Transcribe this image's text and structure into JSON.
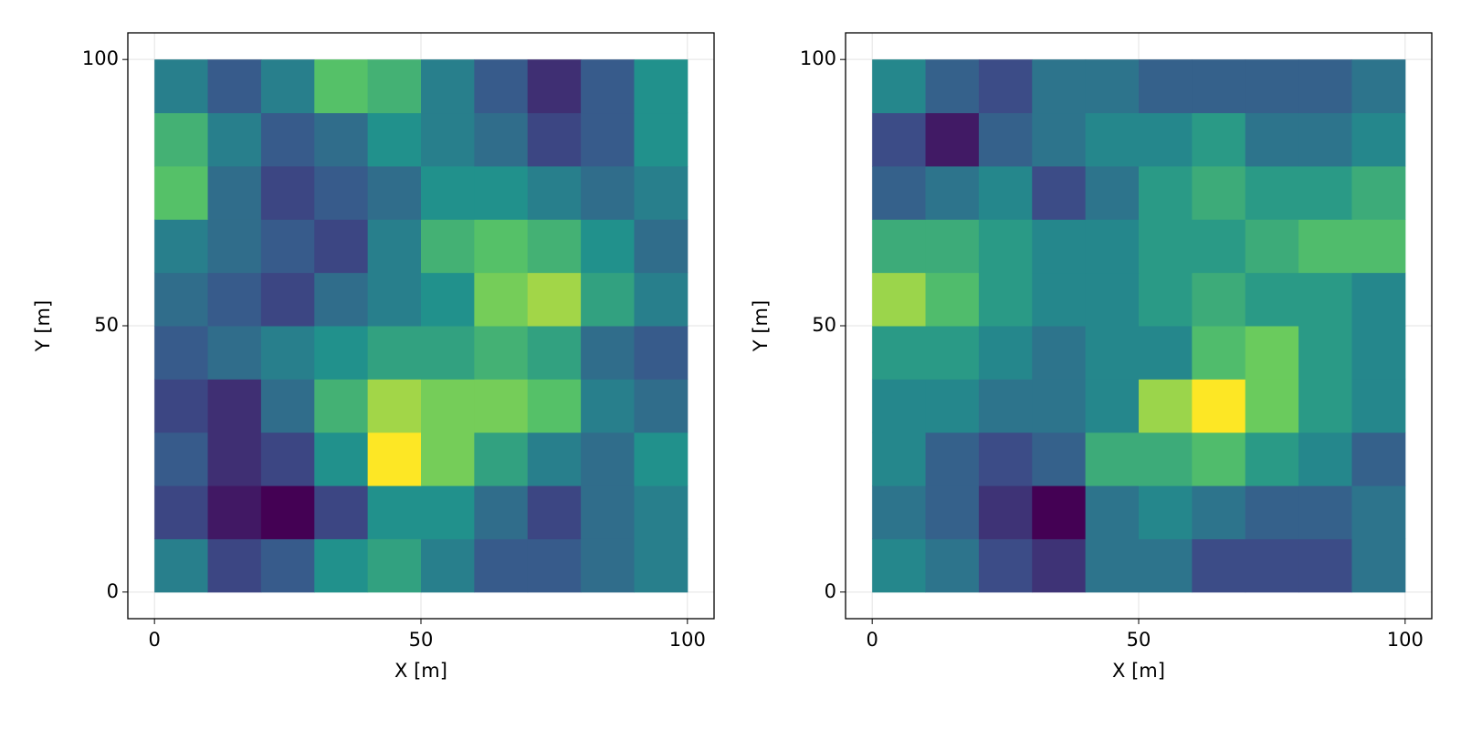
{
  "chart_data": [
    {
      "type": "heatmap",
      "xlabel": "X [m]",
      "ylabel": "Y [m]",
      "colormap": "viridis",
      "x": [
        5,
        15,
        25,
        35,
        45,
        55,
        65,
        75,
        85,
        95
      ],
      "y": [
        5,
        15,
        25,
        35,
        45,
        55,
        65,
        75,
        85,
        95
      ],
      "z": [
        [
          0.45,
          0.3,
          0.35,
          0.5,
          0.55,
          0.45,
          0.35,
          0.35,
          0.4,
          0.45
        ],
        [
          0.3,
          0.2,
          0.15,
          0.3,
          0.5,
          0.5,
          0.4,
          0.3,
          0.4,
          0.45
        ],
        [
          0.35,
          0.25,
          0.3,
          0.5,
          0.85,
          0.7,
          0.55,
          0.45,
          0.4,
          0.5
        ],
        [
          0.3,
          0.25,
          0.4,
          0.6,
          0.75,
          0.7,
          0.7,
          0.65,
          0.45,
          0.4
        ],
        [
          0.35,
          0.4,
          0.45,
          0.5,
          0.55,
          0.55,
          0.6,
          0.55,
          0.4,
          0.35
        ],
        [
          0.4,
          0.35,
          0.3,
          0.4,
          0.45,
          0.5,
          0.7,
          0.75,
          0.55,
          0.45
        ],
        [
          0.45,
          0.4,
          0.35,
          0.3,
          0.45,
          0.6,
          0.65,
          0.6,
          0.5,
          0.4
        ],
        [
          0.65,
          0.4,
          0.3,
          0.35,
          0.4,
          0.5,
          0.5,
          0.45,
          0.4,
          0.45
        ],
        [
          0.6,
          0.45,
          0.35,
          0.4,
          0.5,
          0.45,
          0.4,
          0.3,
          0.35,
          0.5
        ],
        [
          0.45,
          0.35,
          0.45,
          0.65,
          0.6,
          0.45,
          0.35,
          0.25,
          0.35,
          0.5
        ]
      ],
      "xlim": [
        -5,
        105
      ],
      "ylim": [
        -5,
        105
      ],
      "xticks": [
        0,
        50,
        100
      ],
      "yticks": [
        0,
        50,
        100
      ],
      "grid": true
    },
    {
      "type": "heatmap",
      "xlabel": "X [m]",
      "ylabel": "Y [m]",
      "colormap": "viridis",
      "x": [
        5,
        15,
        25,
        35,
        45,
        55,
        65,
        75,
        85,
        95
      ],
      "y": [
        5,
        15,
        25,
        35,
        45,
        55,
        65,
        75,
        85,
        95
      ],
      "z": [
        [
          0.45,
          0.4,
          0.3,
          0.25,
          0.4,
          0.4,
          0.3,
          0.3,
          0.3,
          0.4
        ],
        [
          0.4,
          0.35,
          0.25,
          0.15,
          0.4,
          0.45,
          0.4,
          0.35,
          0.35,
          0.4
        ],
        [
          0.45,
          0.35,
          0.3,
          0.35,
          0.55,
          0.55,
          0.6,
          0.5,
          0.45,
          0.35
        ],
        [
          0.45,
          0.45,
          0.4,
          0.4,
          0.45,
          0.7,
          0.8,
          0.65,
          0.5,
          0.45
        ],
        [
          0.5,
          0.5,
          0.45,
          0.4,
          0.45,
          0.45,
          0.6,
          0.65,
          0.5,
          0.45
        ],
        [
          0.7,
          0.6,
          0.5,
          0.45,
          0.45,
          0.5,
          0.55,
          0.5,
          0.5,
          0.45
        ],
        [
          0.55,
          0.55,
          0.5,
          0.45,
          0.45,
          0.5,
          0.5,
          0.55,
          0.6,
          0.6
        ],
        [
          0.35,
          0.4,
          0.45,
          0.3,
          0.4,
          0.5,
          0.55,
          0.5,
          0.5,
          0.55
        ],
        [
          0.3,
          0.2,
          0.35,
          0.4,
          0.45,
          0.45,
          0.5,
          0.4,
          0.4,
          0.45
        ],
        [
          0.45,
          0.35,
          0.3,
          0.4,
          0.4,
          0.35,
          0.35,
          0.35,
          0.35,
          0.4
        ]
      ],
      "xlim": [
        -5,
        105
      ],
      "ylim": [
        -5,
        105
      ],
      "xticks": [
        0,
        50,
        100
      ],
      "yticks": [
        0,
        50,
        100
      ],
      "grid": true
    }
  ]
}
